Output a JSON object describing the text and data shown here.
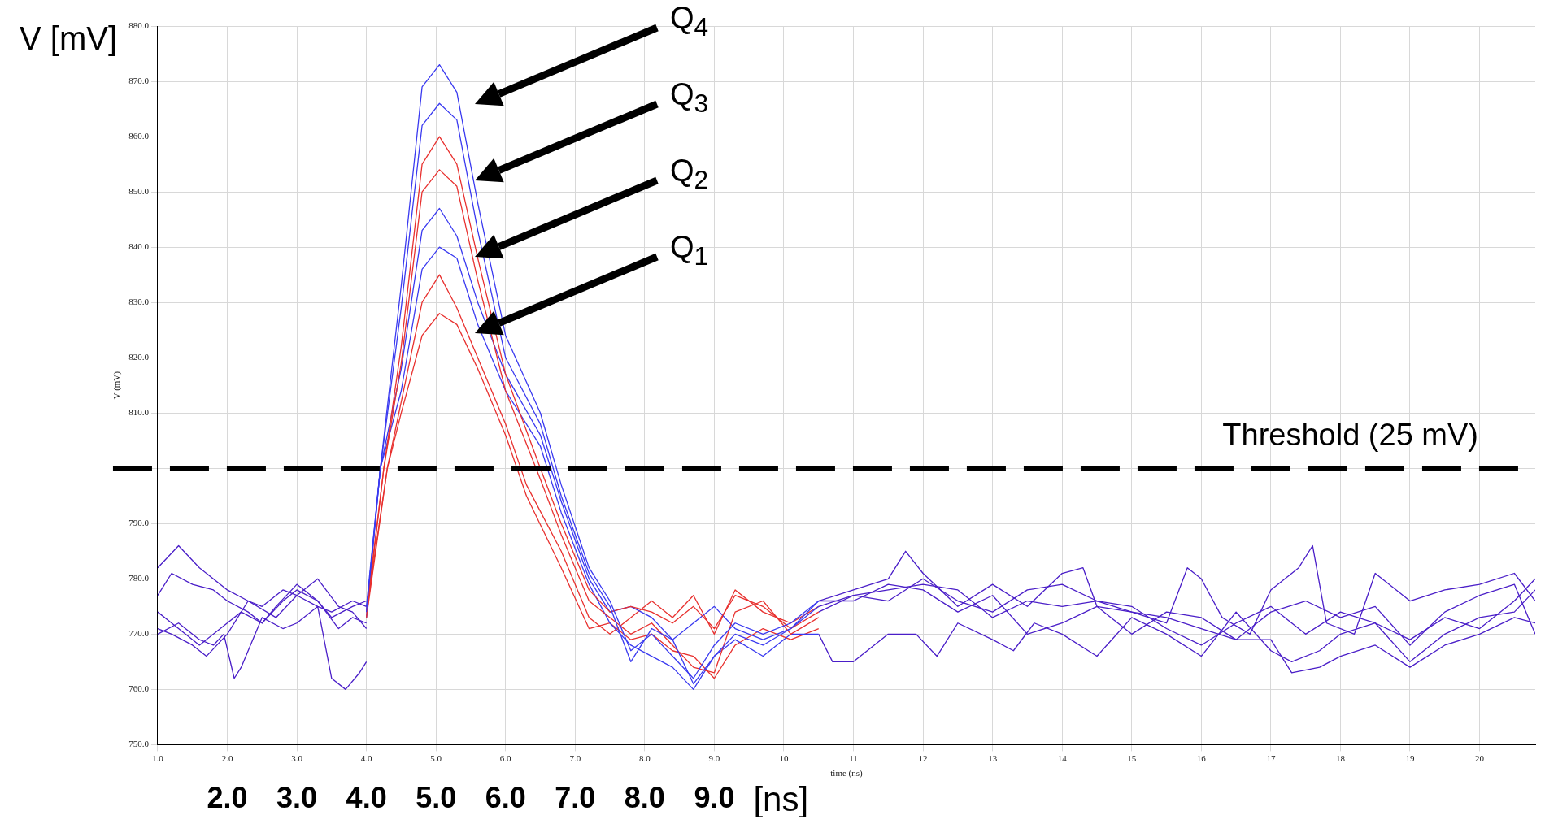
{
  "chart_data": {
    "type": "line",
    "xlabel": "time (ns)",
    "ylabel": "V (mV)",
    "x2label": "[ns]",
    "xlim": [
      1.0,
      20.8
    ],
    "xticks": [
      {
        "value": 1,
        "label": "1.0"
      },
      {
        "value": 2,
        "label": "2.0"
      },
      {
        "value": 3,
        "label": "3.0"
      },
      {
        "value": 4,
        "label": "4.0"
      },
      {
        "value": 5,
        "label": "5.0"
      },
      {
        "value": 6,
        "label": "6.0"
      },
      {
        "value": 7,
        "label": "7.0"
      },
      {
        "value": 8,
        "label": "8.0"
      },
      {
        "value": 9,
        "label": "9.0"
      },
      10,
      11,
      12,
      13,
      14,
      15,
      16,
      17,
      18,
      19,
      20
    ],
    "x2lim": [
      1.0,
      20.8
    ],
    "x2ticks": [
      {
        "value": 2,
        "label": "2.0"
      },
      {
        "value": 3,
        "label": "3.0"
      },
      {
        "value": 4,
        "label": "4.0"
      },
      {
        "value": 5,
        "label": "5.0"
      },
      {
        "value": 6,
        "label": "6.0"
      },
      {
        "value": 7,
        "label": "7.0"
      },
      {
        "value": 8,
        "label": "8.0"
      },
      {
        "value": 9,
        "label": "9.0"
      }
    ],
    "ylim": [
      750,
      880
    ],
    "yticks": [
      {
        "value": 750,
        "label": "750.0"
      },
      {
        "value": 760,
        "label": "760.0"
      },
      {
        "value": 770,
        "label": "770.0"
      },
      {
        "value": 780,
        "label": "780.0"
      },
      {
        "value": 790,
        "label": "790.0"
      },
      {
        "value": 800,
        "label": null
      },
      {
        "value": 810,
        "label": "810.0"
      },
      {
        "value": 820,
        "label": "820.0"
      },
      {
        "value": 830,
        "label": "830.0"
      },
      {
        "value": 840,
        "label": "840.0"
      },
      {
        "value": 850,
        "label": "850.0"
      },
      {
        "value": 860,
        "label": "860.0"
      },
      {
        "value": 870,
        "label": "870.0"
      },
      {
        "value": 880,
        "label": "880.0"
      }
    ],
    "grid": true,
    "legend": false,
    "marker": "none",
    "line_style": "solid",
    "ref_lines": [
      {
        "axis": "y",
        "value": 800,
        "label": "Threshold (25 mV)",
        "color": "#000000",
        "line_style": "dashed"
      }
    ],
    "annotations": [
      "V [mV]",
      "Q$_{4}$",
      "Q$_{3}$",
      "Q$_{2}$",
      "Q$_{1}$"
    ],
    "series": [
      {
        "color": "#4a1ec8",
        "x": [
          1.0,
          1.3,
          1.6,
          2.0,
          2.3,
          2.5,
          2.8,
          3.0,
          3.3,
          3.5,
          3.8,
          4.0
        ],
        "values": [
          782,
          786,
          782,
          778,
          776,
          775,
          778,
          777,
          775,
          774,
          776,
          775
        ]
      },
      {
        "color": "#4a1ec8",
        "x": [
          1.0,
          1.2,
          1.5,
          1.8,
          2.0,
          2.3,
          2.5,
          2.8,
          3.0,
          3.3,
          3.5,
          3.8,
          4.0
        ],
        "values": [
          777,
          781,
          779,
          778,
          776,
          774,
          772,
          776,
          778,
          776,
          773,
          775,
          776
        ]
      },
      {
        "color": "#4a1ec8",
        "x": [
          1.0,
          1.3,
          1.6,
          1.9,
          2.2,
          2.5,
          2.7,
          3.0,
          3.3,
          3.6,
          3.8,
          4.0
        ],
        "values": [
          774,
          771,
          768,
          771,
          774,
          772,
          775,
          779,
          776,
          771,
          773,
          772
        ]
      },
      {
        "color": "#4a1ec8",
        "x": [
          1.0,
          1.2,
          1.5,
          1.7,
          2.0,
          2.3,
          2.7,
          3.0,
          3.3,
          3.6,
          3.8,
          4.0
        ],
        "values": [
          771,
          770,
          768,
          766,
          770,
          776,
          773,
          777,
          780,
          775,
          774,
          771
        ]
      },
      {
        "color": "#4a1ec8",
        "x": [
          1.0,
          1.3,
          1.6,
          1.8,
          1.95,
          2.1,
          2.2,
          2.5,
          2.8,
          3.0,
          3.3,
          3.5,
          3.7,
          3.9,
          4.0
        ],
        "values": [
          770,
          772,
          769,
          768,
          770,
          762,
          764,
          773,
          771,
          772,
          775,
          762,
          760,
          763,
          765
        ]
      },
      {
        "color": "#3a3af0",
        "x": [
          4.0,
          4.2,
          4.5,
          4.8,
          5.05,
          5.3,
          5.6,
          6.0,
          6.5,
          6.8,
          7.2,
          7.5,
          7.8,
          8.1,
          8.4,
          8.7,
          9.0,
          9.3,
          9.7,
          10.1,
          10.5
        ],
        "values": [
          774,
          800,
          833,
          869,
          873,
          868,
          848,
          824,
          810,
          797,
          782,
          776,
          767,
          770,
          766,
          762,
          768,
          772,
          770,
          772,
          776
        ]
      },
      {
        "color": "#3a3af0",
        "x": [
          4.0,
          4.2,
          4.5,
          4.8,
          5.05,
          5.3,
          5.6,
          6.0,
          6.5,
          6.8,
          7.2,
          7.5,
          7.8,
          8.1,
          8.4,
          8.7,
          9.0,
          9.3,
          9.7,
          10.1,
          10.5
        ],
        "values": [
          775,
          800,
          829,
          862,
          866,
          863,
          843,
          820,
          808,
          795,
          781,
          775,
          765,
          771,
          769,
          761,
          766,
          770,
          768,
          771,
          775
        ]
      },
      {
        "color": "#e8312f",
        "x": [
          4.0,
          4.25,
          4.5,
          4.8,
          5.05,
          5.3,
          5.6,
          6.0,
          6.5,
          6.8,
          7.2,
          7.5,
          7.8,
          8.1,
          8.4,
          8.7,
          9.0,
          9.3,
          9.7,
          10.1,
          10.5
        ],
        "values": [
          774,
          800,
          822,
          855,
          860,
          855,
          838,
          817,
          800,
          790,
          778,
          774,
          775,
          774,
          772,
          775,
          771,
          777,
          775,
          771,
          774
        ]
      },
      {
        "color": "#e8312f",
        "x": [
          4.0,
          4.25,
          4.5,
          4.8,
          5.05,
          5.3,
          5.6,
          6.0,
          6.5,
          6.8,
          7.2,
          7.5,
          7.8,
          8.1,
          8.4,
          8.7,
          9.0,
          9.3,
          9.7,
          10.1,
          10.5
        ],
        "values": [
          773,
          800,
          819,
          850,
          854,
          851,
          834,
          814,
          798,
          788,
          776,
          773,
          770,
          772,
          768,
          764,
          763,
          774,
          776,
          770,
          773
        ]
      },
      {
        "color": "#3a3af0",
        "x": [
          4.0,
          4.2,
          4.5,
          4.8,
          5.05,
          5.3,
          5.6,
          6.0,
          6.5,
          6.8,
          7.2,
          7.5,
          7.8,
          8.1,
          8.4,
          8.7,
          9.0,
          9.3,
          9.7,
          10.1,
          10.5
        ],
        "values": [
          774,
          800,
          818,
          843,
          847,
          842,
          830,
          817,
          806,
          794,
          780,
          774,
          775,
          773,
          769,
          772,
          775,
          771,
          769,
          771,
          776
        ]
      },
      {
        "color": "#3a3af0",
        "x": [
          4.0,
          4.2,
          4.5,
          4.8,
          5.05,
          5.3,
          5.6,
          6.0,
          6.5,
          6.8,
          7.2,
          7.5,
          7.8,
          8.1,
          8.4,
          8.7,
          9.0,
          9.3,
          9.7,
          10.1,
          10.5
        ],
        "values": [
          773,
          800,
          814,
          836,
          840,
          838,
          826,
          814,
          804,
          792,
          779,
          772,
          768,
          766,
          764,
          760,
          766,
          769,
          766,
          770,
          770
        ]
      },
      {
        "color": "#e8312f",
        "x": [
          4.0,
          4.3,
          4.5,
          4.8,
          5.05,
          5.3,
          5.6,
          6.0,
          6.3,
          6.8,
          7.2,
          7.5,
          7.8,
          8.1,
          8.4,
          8.7,
          9.0,
          9.3,
          9.7,
          10.1,
          10.5
        ],
        "values": [
          774,
          800,
          812,
          830,
          835,
          829,
          820,
          808,
          797,
          785,
          773,
          770,
          773,
          776,
          773,
          777,
          770,
          778,
          774,
          772,
          775
        ]
      },
      {
        "color": "#e8312f",
        "x": [
          4.0,
          4.3,
          4.5,
          4.8,
          5.05,
          5.3,
          5.6,
          6.0,
          6.3,
          6.8,
          7.2,
          7.5,
          7.8,
          8.1,
          8.4,
          8.7,
          9.0,
          9.3,
          9.7,
          10.1,
          10.5
        ],
        "values": [
          773,
          800,
          810,
          824,
          828,
          826,
          818,
          806,
          795,
          782,
          771,
          772,
          769,
          770,
          767,
          766,
          762,
          768,
          771,
          769,
          771
        ]
      },
      {
        "color": "#4a1ec8",
        "x": [
          10.5,
          11.0,
          11.5,
          11.75,
          12.0,
          12.5,
          13.0,
          13.5,
          14.0,
          14.3,
          14.5,
          15.0,
          15.5,
          15.8,
          16.0,
          16.3,
          16.7,
          17.0,
          17.4,
          17.6,
          17.8,
          18.2,
          18.5,
          19.0,
          19.5,
          20.0,
          20.5,
          20.8
        ],
        "values": [
          776,
          778,
          780,
          785,
          781,
          775,
          779,
          775,
          781,
          782,
          775,
          774,
          772,
          782,
          780,
          773,
          770,
          778,
          782,
          786,
          772,
          770,
          781,
          776,
          778,
          779,
          781,
          776
        ]
      },
      {
        "color": "#4a1ec8",
        "x": [
          10.5,
          11.0,
          11.5,
          12.0,
          12.5,
          13.0,
          13.5,
          14.0,
          14.5,
          15.0,
          15.5,
          16.0,
          16.5,
          17.0,
          17.5,
          18.0,
          18.5,
          19.0,
          19.5,
          20.0,
          20.5,
          20.8
        ],
        "values": [
          775,
          777,
          776,
          780,
          776,
          774,
          778,
          779,
          776,
          775,
          771,
          768,
          772,
          775,
          770,
          774,
          772,
          769,
          773,
          771,
          776,
          780
        ]
      },
      {
        "color": "#4a1ec8",
        "x": [
          10.5,
          10.7,
          11.0,
          11.5,
          11.9,
          12.2,
          12.5,
          13.0,
          13.3,
          13.6,
          14.0,
          14.5,
          15.0,
          15.5,
          16.0,
          16.5,
          17.0,
          17.3,
          17.7,
          18.0,
          18.5,
          19.0,
          19.5,
          20.0,
          20.5,
          20.8
        ],
        "values": [
          770,
          765,
          765,
          770,
          770,
          766,
          772,
          769,
          767,
          772,
          770,
          766,
          773,
          770,
          766,
          774,
          767,
          765,
          767,
          770,
          772,
          765,
          770,
          773,
          774,
          778
        ]
      },
      {
        "color": "#4a1ec8",
        "x": [
          10.5,
          11.0,
          11.5,
          12.0,
          12.5,
          13.0,
          13.5,
          14.0,
          14.5,
          15.0,
          15.5,
          16.0,
          16.5,
          17.0,
          17.3,
          17.7,
          18.0,
          18.5,
          19.0,
          19.5,
          20.0,
          20.5,
          20.8
        ],
        "values": [
          776,
          776,
          779,
          778,
          774,
          777,
          770,
          772,
          775,
          770,
          774,
          773,
          769,
          769,
          763,
          764,
          766,
          768,
          764,
          768,
          770,
          773,
          772
        ]
      },
      {
        "color": "#4a1ec8",
        "x": [
          10.5,
          11.0,
          11.5,
          12.0,
          12.5,
          13.0,
          13.5,
          14.0,
          14.5,
          15.0,
          15.5,
          16.0,
          16.5,
          17.0,
          17.5,
          18.0,
          18.5,
          19.0,
          19.5,
          20.0,
          20.5,
          20.8
        ],
        "values": [
          774,
          777,
          778,
          779,
          778,
          773,
          776,
          775,
          776,
          774,
          773,
          771,
          769,
          774,
          776,
          773,
          775,
          768,
          774,
          777,
          779,
          770
        ]
      }
    ]
  }
}
